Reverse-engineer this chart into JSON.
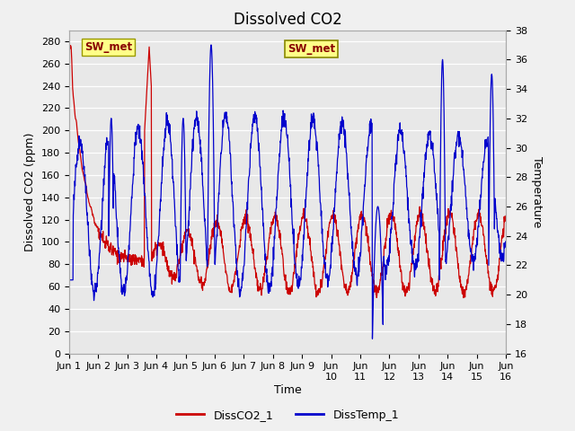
{
  "title": "Dissolved CO2",
  "xlabel": "Time",
  "ylabel_left": "Dissolved CO2 (ppm)",
  "ylabel_right": "Temperature",
  "ylim_left": [
    0,
    290
  ],
  "ylim_right": [
    16,
    38
  ],
  "yticks_left": [
    0,
    20,
    40,
    60,
    80,
    100,
    120,
    140,
    160,
    180,
    200,
    220,
    240,
    260,
    280
  ],
  "yticks_right": [
    16,
    18,
    20,
    22,
    24,
    26,
    28,
    30,
    32,
    34,
    36,
    38
  ],
  "color_co2": "#cc0000",
  "color_temp": "#0000cc",
  "legend_co2": "DissCO2_1",
  "legend_temp": "DissTemp_1",
  "annotation_text": "SW_met",
  "fig_facecolor": "#f0f0f0",
  "plot_facecolor": "#e8e8e8",
  "grid_color": "#ffffff",
  "title_fontsize": 12,
  "axis_label_fontsize": 9,
  "tick_fontsize": 8
}
